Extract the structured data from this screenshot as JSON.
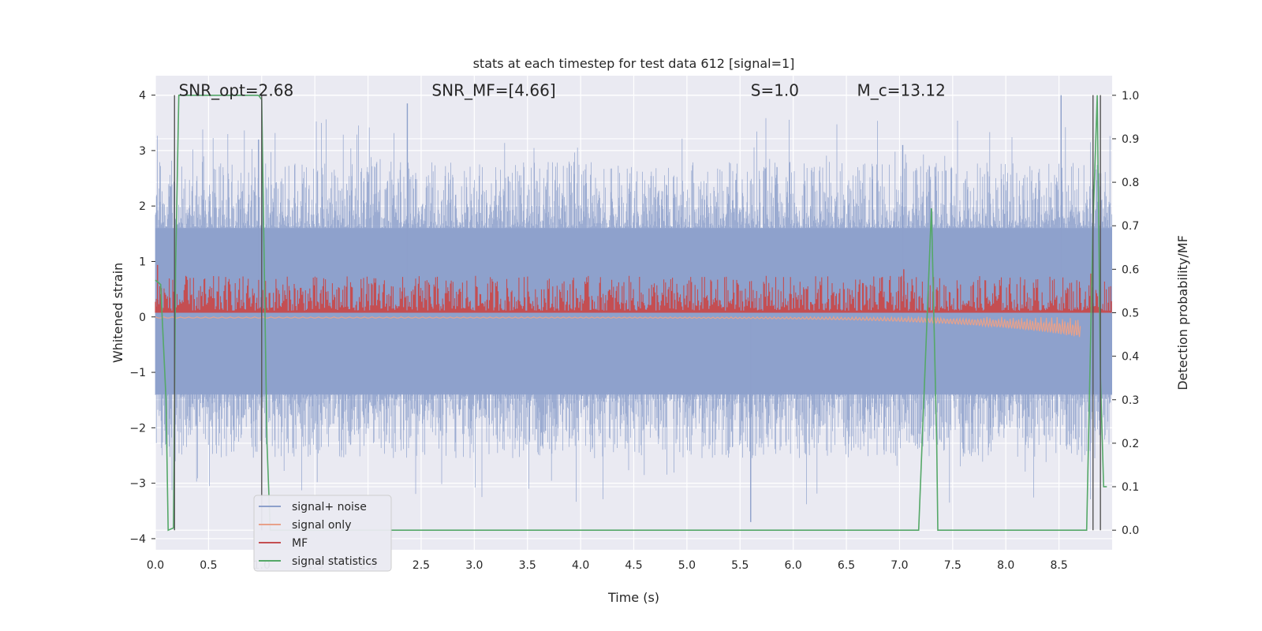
{
  "chart_data": {
    "type": "line",
    "title": "stats at each timestep for test data 612 [signal=1]",
    "xlabel": "Time (s)",
    "ylabel": "Whitened strain",
    "y2label": "Detection probability/MF",
    "xlim": [
      0.0,
      9.0
    ],
    "ylim": [
      -4.2,
      4.35
    ],
    "y2lim": [
      -0.045,
      1.045
    ],
    "x_ticks": [
      "0.0",
      "0.5",
      "1.0",
      "1.5",
      "2.0",
      "2.5",
      "3.0",
      "3.5",
      "4.0",
      "4.5",
      "5.0",
      "5.5",
      "6.0",
      "6.5",
      "7.0",
      "7.5",
      "8.0",
      "8.5"
    ],
    "y_ticks": [
      "4",
      "3",
      "2",
      "1",
      "0",
      "−1",
      "−2",
      "−3",
      "−4"
    ],
    "y2_ticks": [
      "1.0",
      "0.9",
      "0.8",
      "0.7",
      "0.6",
      "0.5",
      "0.4",
      "0.3",
      "0.2",
      "0.1",
      "0.0"
    ],
    "grid": true,
    "legend_position": "lower-left",
    "annotations": [
      {
        "text": "SNR_opt=2.68",
        "x": 0.19,
        "y": 4.0
      },
      {
        "text": "SNR_MF=[4.66]",
        "x": 2.6,
        "y": 4.0
      },
      {
        "text": "S=1.0",
        "x": 5.6,
        "y": 4.0
      },
      {
        "text": "M_c=13.12",
        "x": 6.6,
        "y": 4.0
      }
    ],
    "vertical_markers": {
      "color": "#555555",
      "x": [
        0.18,
        1.0,
        8.82,
        8.89
      ],
      "y_range": [
        -4.0,
        4.0
      ]
    },
    "series": [
      {
        "name": "signal+ noise",
        "color": "#8da0cb",
        "axis": "left",
        "kind": "noise-envelope",
        "core_band": [
          -1.4,
          1.6
        ],
        "typical_peak": 2.6,
        "max_peak": 4.0,
        "min_trough": -3.7
      },
      {
        "name": "signal only",
        "color": "#e8a18a",
        "axis": "left",
        "kind": "chirp",
        "x_start": 0.0,
        "x_end": 8.7,
        "final_amplitude": -0.35
      },
      {
        "name": "MF",
        "color": "#c44e52",
        "axis": "right",
        "kind": "noise-band",
        "baseline": 0.5,
        "band_top": 0.56,
        "spikes": [
          [
            0.02,
            0.61
          ],
          [
            7.04,
            0.6
          ],
          [
            8.8,
            0.59
          ]
        ]
      },
      {
        "name": "signal statistics",
        "color": "#55a868",
        "axis": "right",
        "x": [
          0.0,
          0.05,
          0.1,
          0.12,
          0.17,
          0.19,
          0.22,
          0.25,
          0.97,
          1.0,
          1.05,
          1.08,
          7.18,
          7.3,
          7.35,
          7.36,
          8.76,
          8.82,
          8.86,
          8.89,
          8.92,
          8.95
        ],
        "y": [
          0.575,
          0.565,
          0.3,
          0.0,
          0.005,
          0.6,
          1.0,
          1.0,
          1.0,
          0.99,
          0.2,
          0.0,
          0.0,
          0.74,
          0.2,
          0.0,
          0.0,
          0.7,
          1.0,
          0.35,
          0.1,
          0.1
        ]
      }
    ]
  },
  "legend": {
    "items": [
      {
        "label": "signal+ noise",
        "color": "#8da0cb"
      },
      {
        "label": "signal only",
        "color": "#e8a18a"
      },
      {
        "label": "MF",
        "color": "#c44e52"
      },
      {
        "label": "signal statistics",
        "color": "#55a868"
      }
    ]
  },
  "colors": {
    "plot_background": "#eaeaf2",
    "grid": "#ffffff",
    "text": "#262626"
  }
}
